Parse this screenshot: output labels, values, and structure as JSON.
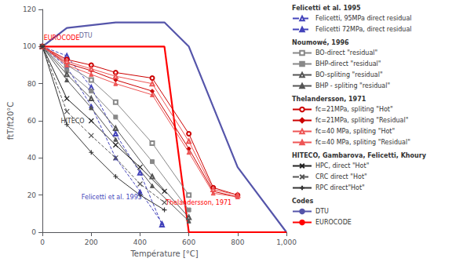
{
  "chart_data": {
    "type": "line",
    "xlabel": "Température [°C]",
    "ylabel": "ftT/ft20°C",
    "xlim": [
      0,
      1000
    ],
    "ylim": [
      0,
      120
    ],
    "xticks": [
      0,
      200,
      400,
      600,
      800,
      1000
    ],
    "yticks": [
      0,
      20,
      40,
      60,
      80,
      100,
      120
    ],
    "grid": false,
    "series": [
      {
        "name": "DTU",
        "color": "#5555aa",
        "line_style": "solid",
        "marker": "none",
        "x": [
          0,
          100,
          300,
          500,
          600,
          800,
          1000
        ],
        "values": [
          100,
          110,
          113,
          113,
          100,
          35,
          0
        ]
      },
      {
        "name": "EUROCODE",
        "color": "red",
        "line_style": "solid",
        "marker": "none",
        "x": [
          0,
          500,
          600,
          1000
        ],
        "values": [
          100,
          100,
          0,
          0
        ]
      },
      {
        "name": "Felicetti, 95MPa direct residual",
        "color": "#4444bb",
        "line_style": "dashed",
        "marker": "triangle-open",
        "x": [
          0,
          100,
          200,
          300,
          400,
          490
        ],
        "values": [
          100,
          95,
          78,
          53,
          32,
          4
        ]
      },
      {
        "name": "Felicetti 72MPa, direct residual",
        "color": "#4444bb",
        "line_style": "dashed",
        "marker": "triangle",
        "x": [
          0,
          100,
          200,
          300,
          400,
          490
        ],
        "values": [
          100,
          89,
          68,
          40,
          22,
          5
        ]
      },
      {
        "name": "BO-direct \"residual\"",
        "color": "#888888",
        "line_style": "solid",
        "marker": "square-open",
        "x": [
          0,
          100,
          200,
          300,
          450,
          600
        ],
        "values": [
          100,
          90,
          82,
          70,
          48,
          20
        ]
      },
      {
        "name": "BHP-direct \"residual\"",
        "color": "#888888",
        "line_style": "solid",
        "marker": "square",
        "x": [
          0,
          100,
          200,
          300,
          450,
          600
        ],
        "values": [
          100,
          87,
          76,
          62,
          38,
          12
        ]
      },
      {
        "name": "BO-spliting \"residual\"",
        "color": "#555555",
        "line_style": "solid",
        "marker": "triangle-open",
        "x": [
          0,
          100,
          200,
          300,
          450,
          600
        ],
        "values": [
          100,
          85,
          72,
          56,
          30,
          8
        ]
      },
      {
        "name": "BHP - spliting \"residual\"",
        "color": "#555555",
        "line_style": "solid",
        "marker": "triangle",
        "x": [
          0,
          100,
          200,
          300,
          450,
          600
        ],
        "values": [
          100,
          82,
          67,
          50,
          25,
          6
        ]
      },
      {
        "name": "fc=21MPa, spliting \"Hot\"",
        "color": "#cc0000",
        "line_style": "solid",
        "marker": "circle-open",
        "x": [
          0,
          100,
          200,
          300,
          450,
          600,
          700,
          800
        ],
        "values": [
          100,
          93,
          90,
          86,
          83,
          53,
          24,
          20
        ]
      },
      {
        "name": "fc=21MPa, spliting \"Residual\"",
        "color": "#cc0000",
        "line_style": "solid",
        "marker": "diamond",
        "x": [
          0,
          100,
          200,
          300,
          450,
          600,
          700,
          800
        ],
        "values": [
          100,
          91,
          87,
          82,
          76,
          45,
          22,
          19
        ]
      },
      {
        "name": "fc=40 MPa, spliting \"Hot\"",
        "color": "#ee5555",
        "line_style": "solid",
        "marker": "triangle-open",
        "x": [
          0,
          100,
          200,
          300,
          450,
          600,
          700,
          800
        ],
        "values": [
          100,
          92,
          88,
          84,
          80,
          49,
          23,
          20
        ]
      },
      {
        "name": "fc=40 MPa, spliting \"Residual\"",
        "color": "#ee5555",
        "line_style": "solid",
        "marker": "triangle",
        "x": [
          0,
          100,
          200,
          300,
          450,
          600,
          700,
          800
        ],
        "values": [
          100,
          90,
          85,
          80,
          74,
          43,
          21,
          19
        ]
      },
      {
        "name": "HPC, direct \"Hot\"",
        "color": "#222222",
        "line_style": "solid",
        "marker": "x",
        "x": [
          0,
          100,
          200,
          300,
          400,
          500
        ],
        "values": [
          100,
          72,
          60,
          47,
          35,
          22
        ]
      },
      {
        "name": "CRC direct \"Hot\"",
        "color": "#555555",
        "line_style": "dashed",
        "marker": "x",
        "x": [
          0,
          100,
          200,
          300,
          400,
          500
        ],
        "values": [
          100,
          65,
          52,
          40,
          26,
          16
        ]
      },
      {
        "name": "RPC direct\"Hot\"",
        "color": "#333333",
        "line_style": "solid",
        "marker": "plus",
        "x": [
          0,
          100,
          200,
          300,
          400,
          500
        ],
        "values": [
          100,
          58,
          43,
          30,
          20,
          12
        ]
      }
    ],
    "legend_groups": [
      {
        "title": "Felicetti et al. 1995",
        "entries": [
          "Felicetti, 95MPa direct residual",
          "Felicetti 72MPa, direct residual"
        ]
      },
      {
        "title": "Noumowé, 1996",
        "entries": [
          "BO-direct \"residual\"",
          "BHP-direct \"residual\"",
          "BO-spliting \"residual\"",
          "BHP - spliting \"residual\""
        ]
      },
      {
        "title": "Thelandersson, 1971",
        "entries": [
          "fc=21MPa, spliting \"Hot\"",
          "fc=21MPa, spliting \"Residual\"",
          "fc=40 MPa, spliting \"Hot\"",
          "fc=40 MPa, spliting \"Residual\""
        ]
      },
      {
        "title": "HITECO, Gambarova, Felicetti, Khoury",
        "entries": [
          "HPC, direct \"Hot\"",
          "CRC direct \"Hot\"",
          "RPC direct\"Hot\""
        ]
      },
      {
        "title": "Codes",
        "entries": [
          "DTU",
          "EUROCODE"
        ]
      }
    ],
    "annotations": [
      {
        "x": 5,
        "y": 103,
        "text": "EUROCODE",
        "color": "red"
      },
      {
        "x": 150,
        "y": 104,
        "text": "DTU",
        "color": "#666699"
      },
      {
        "x": 75,
        "y": 58,
        "text": "HITECO",
        "color": "#444444"
      },
      {
        "x": 160,
        "y": 17,
        "text": "Felicetti et al. 1995",
        "color": "#4444bb"
      },
      {
        "x": 505,
        "y": 14,
        "text": "Thelandersson, 1971",
        "color": "red"
      }
    ]
  }
}
